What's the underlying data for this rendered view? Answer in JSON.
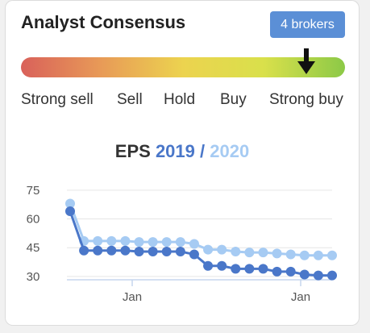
{
  "consensus": {
    "title": "Analyst Consensus",
    "brokers_label": "4 brokers",
    "scale": [
      "Strong sell",
      "Sell",
      "Hold",
      "Buy",
      "Strong buy"
    ],
    "current_rating": "Strong buy",
    "colors": {
      "badge": "#5b8fd6",
      "marker": "#111111"
    },
    "icons": {
      "marker": "down-arrow-icon"
    }
  },
  "eps": {
    "label": "EPS",
    "year1": "2019",
    "separator": "/",
    "year2": "2020"
  },
  "chart_data": {
    "type": "line",
    "title": "EPS 2019 / 2020",
    "xlabel": "",
    "ylabel": "",
    "ylim": [
      27,
      80
    ],
    "yticks": [
      75,
      60,
      45,
      30
    ],
    "xtick_labels": [
      "Jan",
      "Jan"
    ],
    "grid": true,
    "series": [
      {
        "name": "2019",
        "color": "#4a77c9",
        "values": [
          64,
          43.5,
          43.5,
          43.5,
          43.5,
          43,
          43,
          43,
          43,
          41.5,
          35.5,
          35.5,
          34,
          34,
          34,
          32.5,
          32.5,
          31,
          30.5,
          30.5
        ]
      },
      {
        "name": "2020",
        "color": "#a6cbf3",
        "values": [
          68,
          48.5,
          48.5,
          48.5,
          48.5,
          48,
          48,
          48,
          48,
          47,
          44,
          44,
          43,
          42.5,
          42.5,
          42,
          41.5,
          41,
          41,
          41
        ]
      }
    ]
  }
}
